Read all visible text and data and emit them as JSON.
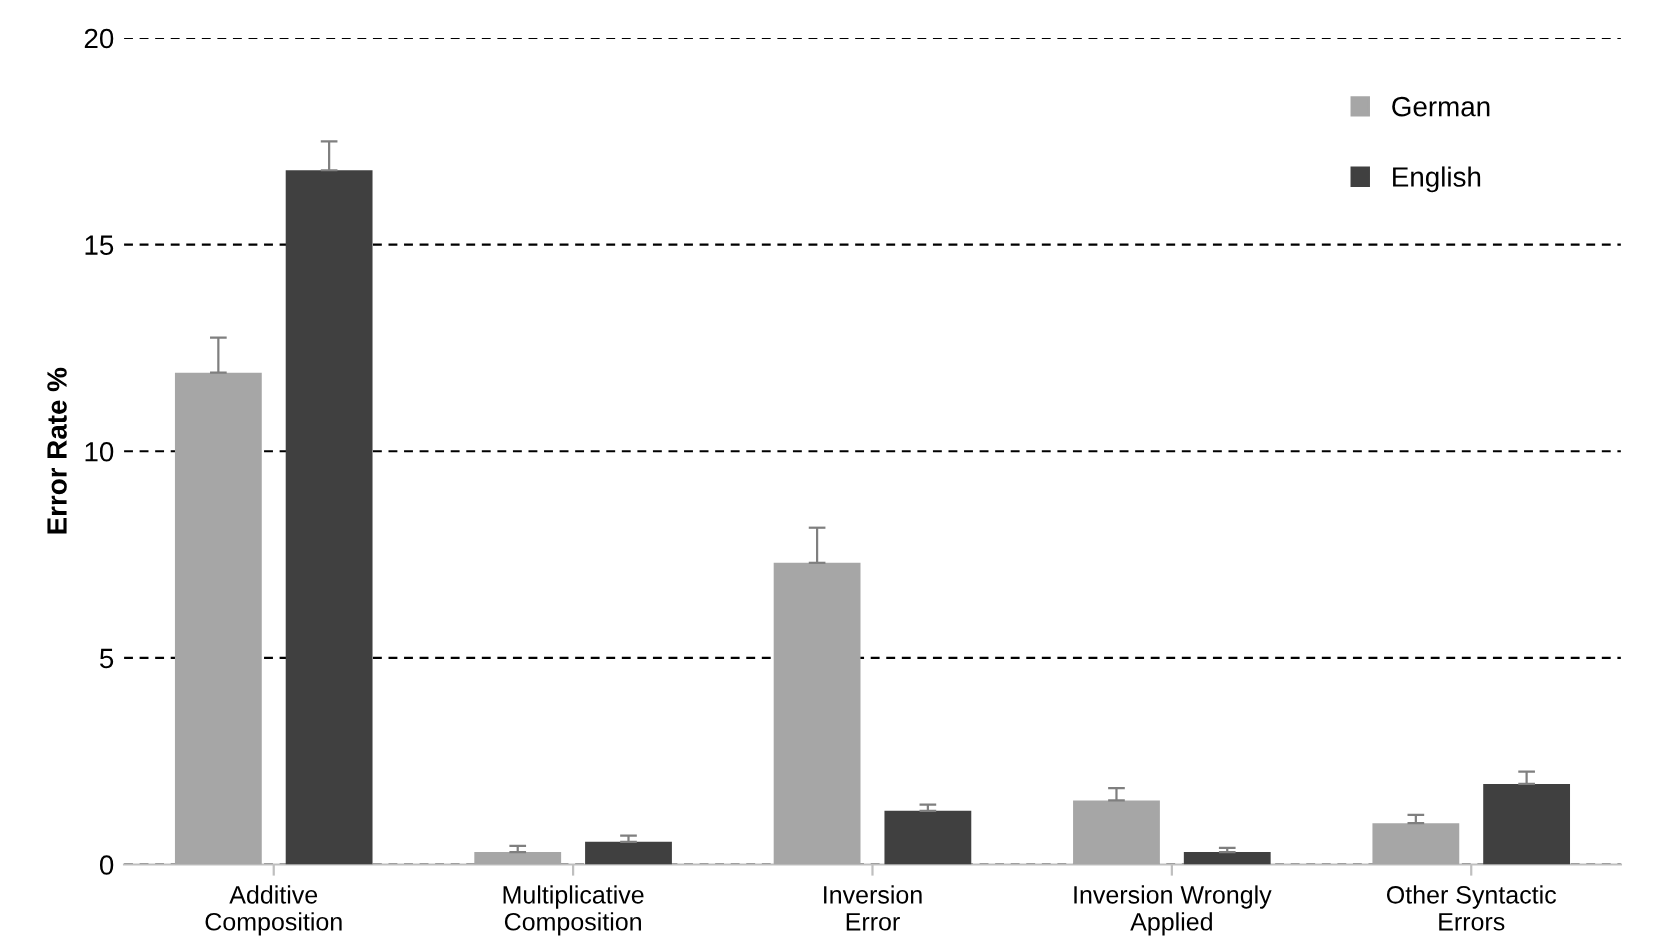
{
  "chart_data": {
    "type": "bar",
    "ylabel": "Error Rate %",
    "categories": [
      "Additive\nComposition",
      "Multiplicative\nComposition",
      "Inversion\nError",
      "Inversion Wrongly\nApplied",
      "Other Syntactic\nErrors"
    ],
    "series": [
      {
        "name": "German",
        "color": "#a6a6a6",
        "values": [
          11.9,
          0.3,
          7.3,
          1.55,
          1.0
        ],
        "errors": [
          [
            11.9,
            12.75
          ],
          [
            0.3,
            0.45
          ],
          [
            7.3,
            8.15
          ],
          [
            1.55,
            1.85
          ],
          [
            1.0,
            1.2
          ]
        ]
      },
      {
        "name": "English",
        "color": "#404040",
        "values": [
          16.8,
          0.55,
          1.3,
          0.3,
          1.95
        ],
        "errors": [
          [
            16.8,
            17.5
          ],
          [
            0.55,
            0.7
          ],
          [
            1.3,
            1.45
          ],
          [
            0.3,
            0.4
          ],
          [
            1.95,
            2.25
          ]
        ]
      }
    ],
    "ylim": [
      0,
      20
    ],
    "yticks": [
      0,
      5,
      10,
      15,
      20
    ],
    "grid": "y",
    "legend": "top right"
  }
}
